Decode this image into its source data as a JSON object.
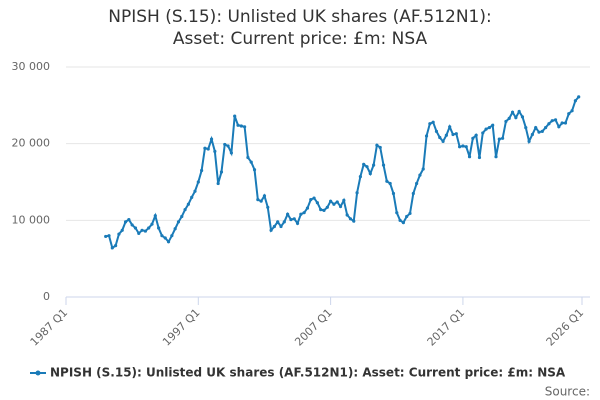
{
  "chart_data": {
    "type": "line",
    "title": "NPISH (S.15): Unlisted UK shares (AF.512N1): Asset: Current price: £m: NSA",
    "source": "Source:",
    "x": [
      "1990 Q1",
      "1990 Q2",
      "1990 Q3",
      "1990 Q4",
      "1991 Q1",
      "1991 Q2",
      "1991 Q3",
      "1991 Q4",
      "1992 Q1",
      "1992 Q2",
      "1992 Q3",
      "1992 Q4",
      "1993 Q1",
      "1993 Q2",
      "1993 Q3",
      "1993 Q4",
      "1994 Q1",
      "1994 Q2",
      "1994 Q3",
      "1994 Q4",
      "1995 Q1",
      "1995 Q2",
      "1995 Q3",
      "1995 Q4",
      "1996 Q1",
      "1996 Q2",
      "1996 Q3",
      "1996 Q4",
      "1997 Q1",
      "1997 Q2",
      "1997 Q3",
      "1997 Q4",
      "1998 Q1",
      "1998 Q2",
      "1998 Q3",
      "1998 Q4",
      "1999 Q1",
      "1999 Q2",
      "1999 Q3",
      "1999 Q4",
      "2000 Q1",
      "2000 Q2",
      "2000 Q3",
      "2000 Q4",
      "2001 Q1",
      "2001 Q2",
      "2001 Q3",
      "2001 Q4",
      "2002 Q1",
      "2002 Q2",
      "2002 Q3",
      "2002 Q4",
      "2003 Q1",
      "2003 Q2",
      "2003 Q3",
      "2003 Q4",
      "2004 Q1",
      "2004 Q2",
      "2004 Q3",
      "2004 Q4",
      "2005 Q1",
      "2005 Q2",
      "2005 Q3",
      "2005 Q4",
      "2006 Q1",
      "2006 Q2",
      "2006 Q3",
      "2006 Q4",
      "2007 Q1",
      "2007 Q2",
      "2007 Q3",
      "2007 Q4",
      "2008 Q1",
      "2008 Q2",
      "2008 Q3",
      "2008 Q4",
      "2009 Q1",
      "2009 Q2",
      "2009 Q3",
      "2009 Q4",
      "2010 Q1",
      "2010 Q2",
      "2010 Q3",
      "2010 Q4",
      "2011 Q1",
      "2011 Q2",
      "2011 Q3",
      "2011 Q4",
      "2012 Q1",
      "2012 Q2",
      "2012 Q3",
      "2012 Q4",
      "2013 Q1",
      "2013 Q2",
      "2013 Q3",
      "2013 Q4",
      "2014 Q1",
      "2014 Q2",
      "2014 Q3",
      "2014 Q4",
      "2015 Q1",
      "2015 Q2",
      "2015 Q3",
      "2015 Q4",
      "2016 Q1",
      "2016 Q2",
      "2016 Q3",
      "2016 Q4",
      "2017 Q1",
      "2017 Q2",
      "2017 Q3",
      "2017 Q4",
      "2018 Q1",
      "2018 Q2",
      "2018 Q3",
      "2018 Q4",
      "2019 Q1",
      "2019 Q2",
      "2019 Q3",
      "2019 Q4",
      "2020 Q1",
      "2020 Q2",
      "2020 Q3",
      "2020 Q4",
      "2021 Q1",
      "2021 Q2",
      "2021 Q3",
      "2021 Q4",
      "2022 Q1",
      "2022 Q2",
      "2022 Q3",
      "2022 Q4",
      "2023 Q1",
      "2023 Q2",
      "2023 Q3",
      "2023 Q4",
      "2024 Q1",
      "2024 Q2",
      "2024 Q3",
      "2024 Q4",
      "2025 Q1",
      "2025 Q2",
      "2025 Q3",
      "2025 Q4"
    ],
    "series": [
      {
        "name": "NPISH (S.15): Unlisted UK shares (AF.512N1): Asset: Current price: £m: NSA",
        "color": "#1a7bb8",
        "values": [
          7900,
          8000,
          6400,
          6700,
          8200,
          8700,
          9800,
          10100,
          9400,
          9000,
          8300,
          8700,
          8600,
          9000,
          9500,
          10600,
          9000,
          8000,
          7700,
          7200,
          8000,
          8900,
          9800,
          10500,
          11400,
          12100,
          13000,
          13800,
          15000,
          16500,
          19400,
          19300,
          20600,
          19000,
          14800,
          16300,
          19900,
          19700,
          18800,
          23600,
          22400,
          22300,
          22200,
          18200,
          17600,
          16600,
          12700,
          12500,
          13200,
          11700,
          8700,
          9200,
          9800,
          9200,
          9800,
          10800,
          10100,
          10200,
          9600,
          10800,
          11000,
          11600,
          12700,
          12900,
          12300,
          11400,
          11300,
          11700,
          12500,
          12100,
          12400,
          11800,
          12600,
          10700,
          10200,
          9900,
          13600,
          15700,
          17300,
          17000,
          16100,
          17200,
          19800,
          19500,
          17200,
          15100,
          14800,
          13500,
          11000,
          10000,
          9700,
          10500,
          10900,
          13500,
          14800,
          15900,
          16700,
          21000,
          22600,
          22800,
          21600,
          20800,
          20300,
          21100,
          22200,
          21200,
          21300,
          19600,
          19700,
          19600,
          18300,
          20700,
          21100,
          18200,
          21400,
          21900,
          22100,
          22400,
          18300,
          20600,
          20700,
          22900,
          23300,
          24100,
          23400,
          24200,
          23500,
          22100,
          20300,
          21200,
          22100,
          21500,
          21600,
          22100,
          22600,
          23000,
          23100,
          22200,
          22700,
          22700,
          23900,
          24300,
          25600,
          26100
        ]
      }
    ],
    "xlim": [
      "1987 Q1",
      "2026 Q1"
    ],
    "xticks": [
      "1987 Q1",
      "1997 Q1",
      "2007 Q1",
      "2017 Q1",
      "2026 Q1"
    ],
    "ylim": [
      0,
      30000
    ],
    "yticks": [
      0,
      {
        "value": 10000,
        "label": "10 000"
      },
      {
        "value": 20000,
        "label": "20 000"
      },
      {
        "value": 30000,
        "label": "30 000"
      }
    ],
    "grid": true
  }
}
